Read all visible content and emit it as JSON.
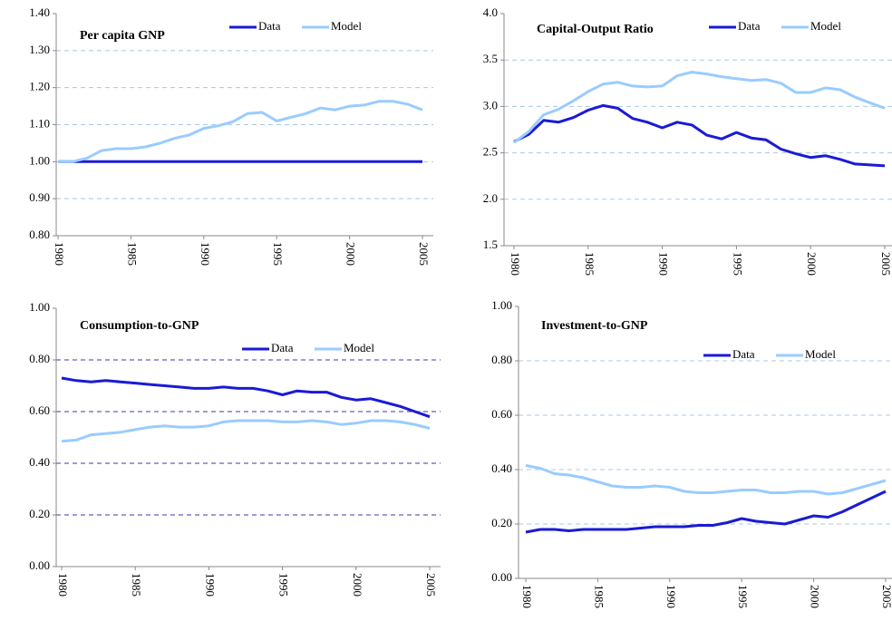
{
  "chart_data": [
    {
      "type": "line",
      "title": "Per capita GNP",
      "x": [
        1980,
        1981,
        1982,
        1983,
        1984,
        1985,
        1986,
        1987,
        1988,
        1989,
        1990,
        1991,
        1992,
        1993,
        1994,
        1995,
        1996,
        1997,
        1998,
        1999,
        2000,
        2001,
        2002,
        2003,
        2004,
        2005
      ],
      "xlim": [
        1980,
        2005
      ],
      "xticks": [
        1980,
        1985,
        1990,
        1995,
        2000,
        2005
      ],
      "ylim": [
        0.8,
        1.4
      ],
      "yticks": [
        {
          "value": 0.8,
          "label": "0.80"
        },
        {
          "value": 0.9,
          "label": "0.90"
        },
        {
          "value": 1.0,
          "label": "1.00"
        },
        {
          "value": 1.1,
          "label": "1.10"
        },
        {
          "value": 1.2,
          "label": "1.20"
        },
        {
          "value": 1.3,
          "label": "1.30"
        },
        {
          "value": 1.4,
          "label": "1.40"
        }
      ],
      "grid": true,
      "series": [
        {
          "name": "Data",
          "color": "#1a1ad6",
          "values": [
            1,
            1,
            1,
            1,
            1,
            1,
            1,
            1,
            1,
            1,
            1,
            1,
            1,
            1,
            1,
            1,
            1,
            1,
            1,
            1,
            1,
            1,
            1,
            1,
            1,
            1
          ]
        },
        {
          "name": "Model",
          "color": "#99ccff",
          "values": [
            1.0,
            1.0,
            1.01,
            1.03,
            1.035,
            1.035,
            1.04,
            1.05,
            1.063,
            1.072,
            1.09,
            1.097,
            1.108,
            1.13,
            1.133,
            1.11,
            1.12,
            1.13,
            1.145,
            1.14,
            1.15,
            1.153,
            1.163,
            1.163,
            1.155,
            1.14
          ]
        }
      ]
    },
    {
      "type": "line",
      "title": "Capital-Output Ratio",
      "x": [
        1980,
        1981,
        1982,
        1983,
        1984,
        1985,
        1986,
        1987,
        1988,
        1989,
        1990,
        1991,
        1992,
        1993,
        1994,
        1995,
        1996,
        1997,
        1998,
        1999,
        2000,
        2001,
        2002,
        2003,
        2004,
        2005
      ],
      "xlim": [
        1980,
        2005
      ],
      "xticks": [
        1980,
        1985,
        1990,
        1995,
        2000,
        2005
      ],
      "ylim": [
        1.5,
        4.0
      ],
      "yticks": [
        1.5,
        {
          "value": 2.0,
          "label": "2.0"
        },
        2.5,
        {
          "value": 3.0,
          "label": "3.0"
        },
        3.5,
        {
          "value": 4.0,
          "label": "4.0"
        }
      ],
      "grid": true,
      "series": [
        {
          "name": "Data",
          "color": "#1a1ad6",
          "values": [
            2.62,
            2.7,
            2.85,
            2.83,
            2.88,
            2.96,
            3.01,
            2.98,
            2.87,
            2.83,
            2.77,
            2.83,
            2.8,
            2.69,
            2.65,
            2.72,
            2.66,
            2.64,
            2.54,
            2.49,
            2.45,
            2.47,
            2.43,
            2.38,
            2.37,
            2.36
          ]
        },
        {
          "name": "Model",
          "color": "#99ccff",
          "values": [
            2.61,
            2.73,
            2.91,
            2.97,
            3.06,
            3.16,
            3.24,
            3.26,
            3.22,
            3.21,
            3.22,
            3.33,
            3.37,
            3.35,
            3.32,
            3.3,
            3.28,
            3.29,
            3.25,
            3.15,
            3.15,
            3.2,
            3.18,
            3.1,
            3.04,
            2.98
          ]
        }
      ]
    },
    {
      "type": "line",
      "title": "Consumption-to-GNP",
      "x": [
        1980,
        1981,
        1982,
        1983,
        1984,
        1985,
        1986,
        1987,
        1988,
        1989,
        1990,
        1991,
        1992,
        1993,
        1994,
        1995,
        1996,
        1997,
        1998,
        1999,
        2000,
        2001,
        2002,
        2003,
        2004,
        2005
      ],
      "xlim": [
        1980,
        2005
      ],
      "xticks": [
        1980,
        1985,
        1990,
        1995,
        2000,
        2005
      ],
      "ylim": [
        0,
        1
      ],
      "yticks": [
        {
          "value": 0,
          "label": "0.00"
        },
        {
          "value": 0.2,
          "label": "0.20"
        },
        {
          "value": 0.4,
          "label": "0.40"
        },
        {
          "value": 0.6,
          "label": "0.60"
        },
        {
          "value": 0.8,
          "label": "0.80"
        },
        {
          "value": 1,
          "label": "1.00"
        }
      ],
      "grid": true,
      "series": [
        {
          "name": "Data",
          "color": "#1a1ad6",
          "values": [
            0.73,
            0.72,
            0.715,
            0.72,
            0.715,
            0.71,
            0.705,
            0.7,
            0.695,
            0.69,
            0.69,
            0.695,
            0.69,
            0.69,
            0.68,
            0.665,
            0.68,
            0.675,
            0.675,
            0.655,
            0.645,
            0.65,
            0.635,
            0.62,
            0.6,
            0.58
          ]
        },
        {
          "name": "Model",
          "color": "#99ccff",
          "values": [
            0.485,
            0.49,
            0.51,
            0.515,
            0.52,
            0.53,
            0.54,
            0.545,
            0.54,
            0.54,
            0.545,
            0.56,
            0.565,
            0.565,
            0.565,
            0.56,
            0.56,
            0.565,
            0.56,
            0.55,
            0.555,
            0.565,
            0.565,
            0.56,
            0.55,
            0.535
          ]
        }
      ]
    },
    {
      "type": "line",
      "title": "Investment-to-GNP",
      "x": [
        1980,
        1981,
        1982,
        1983,
        1984,
        1985,
        1986,
        1987,
        1988,
        1989,
        1990,
        1991,
        1992,
        1993,
        1994,
        1995,
        1996,
        1997,
        1998,
        1999,
        2000,
        2001,
        2002,
        2003,
        2004,
        2005
      ],
      "xlim": [
        1980,
        2005
      ],
      "xticks": [
        1980,
        1985,
        1990,
        1995,
        2000,
        2005
      ],
      "ylim": [
        0,
        1
      ],
      "yticks": [
        {
          "value": 0,
          "label": "0.00"
        },
        {
          "value": 0.2,
          "label": "0.20"
        },
        {
          "value": 0.4,
          "label": "0.40"
        },
        {
          "value": 0.6,
          "label": "0.60"
        },
        {
          "value": 0.8,
          "label": "0.80"
        },
        {
          "value": 1,
          "label": "1.00"
        }
      ],
      "grid": true,
      "series": [
        {
          "name": "Data",
          "color": "#1a1ad6",
          "values": [
            0.17,
            0.18,
            0.18,
            0.175,
            0.18,
            0.18,
            0.18,
            0.18,
            0.185,
            0.19,
            0.19,
            0.19,
            0.195,
            0.195,
            0.205,
            0.22,
            0.21,
            0.205,
            0.2,
            0.215,
            0.23,
            0.225,
            0.245,
            0.27,
            0.295,
            0.32
          ]
        },
        {
          "name": "Model",
          "color": "#99ccff",
          "values": [
            0.415,
            0.405,
            0.385,
            0.38,
            0.37,
            0.355,
            0.34,
            0.335,
            0.335,
            0.34,
            0.335,
            0.32,
            0.315,
            0.315,
            0.32,
            0.325,
            0.325,
            0.315,
            0.315,
            0.32,
            0.32,
            0.31,
            0.315,
            0.33,
            0.345,
            0.36
          ]
        }
      ]
    }
  ]
}
